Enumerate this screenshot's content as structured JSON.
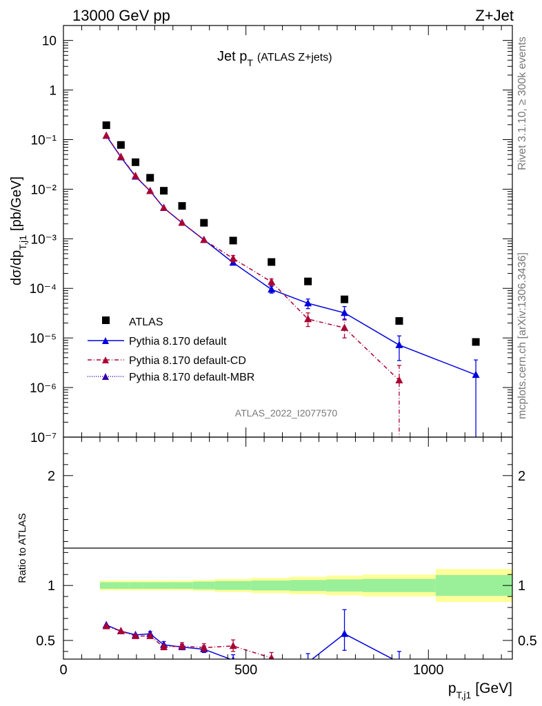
{
  "header": {
    "left": "13000 GeV pp",
    "right": "Z+Jet"
  },
  "side": {
    "rivet": "Rivet 3.1.10, ≥ 300k events",
    "mcplots": "mcplots.cern.ch [arXiv:1306.3436]"
  },
  "chart_data": [
    {
      "type": "scatter",
      "panel": "main",
      "title_main": "Jet p",
      "title_sub": "T",
      "title_extra": "(ATLAS Z+jets)",
      "ylabel": "dσ/dp",
      "ylabel_sub": "T,j1",
      "ylabel_unit": "[pb/GeV]",
      "yscale": "log",
      "ylim": [
        1e-07,
        20
      ],
      "xlim": [
        0,
        1230
      ],
      "y_tick_labels": [
        "10",
        "1",
        "10⁻¹",
        "10⁻²",
        "10⁻³",
        "10⁻⁴",
        "10⁻⁵",
        "10⁻⁶",
        "10⁻⁷"
      ],
      "watermark": "ATLAS_2022_I2077570",
      "legend": {
        "placement": "bottom-left",
        "entries": [
          "ATLAS",
          "Pythia 8.170 default",
          "Pythia 8.170 default-CD",
          "Pythia 8.170 default-MBR"
        ]
      },
      "series": [
        {
          "name": "ATLAS",
          "color": "#000000",
          "marker": "square",
          "x": [
            117.5,
            157.5,
            197.5,
            237.5,
            275,
            325,
            385,
            465,
            570,
            670,
            770,
            920,
            1130
          ],
          "y": [
            0.195,
            0.078,
            0.035,
            0.017,
            0.0093,
            0.0046,
            0.0021,
            0.00092,
            0.00034,
            0.000138,
            6e-05,
            2.2e-05,
            8.3e-06
          ]
        },
        {
          "name": "Pythia 8.170 default",
          "color": "#0000dd",
          "marker": "triangle",
          "line": "solid",
          "x": [
            117.5,
            157.5,
            197.5,
            237.5,
            275,
            325,
            385,
            465,
            570,
            670,
            770,
            920,
            1130
          ],
          "y": [
            0.12,
            0.044,
            0.018,
            0.0092,
            0.0042,
            0.0021,
            0.00095,
            0.00033,
            9.5e-05,
            5e-05,
            3.2e-05,
            7.2e-06,
            1.8e-06
          ],
          "yerr_lo": [
            0,
            0,
            0,
            0,
            0,
            0,
            0,
            0,
            1.5e-05,
            1.1e-05,
            8e-06,
            3.7e-06,
            1.8e-06
          ],
          "yerr_hi": [
            0,
            0,
            0,
            0,
            0,
            0,
            0,
            0,
            1.5e-05,
            1.1e-05,
            1.1e-05,
            3.8e-06,
            1.8e-06
          ]
        },
        {
          "name": "Pythia 8.170 default-CD",
          "color": "#aa0033",
          "marker": "triangle",
          "line": "dashdot",
          "x": [
            117.5,
            157.5,
            197.5,
            237.5,
            275,
            325,
            385,
            465,
            570,
            670,
            770,
            920
          ],
          "y": [
            0.12,
            0.045,
            0.0185,
            0.0092,
            0.0042,
            0.0021,
            0.00095,
            0.0004,
            0.000135,
            2.4e-05,
            1.6e-05,
            1.4e-06
          ],
          "yerr_lo": [
            0,
            0,
            0,
            0,
            0,
            0,
            0,
            6e-05,
            2e-05,
            7e-06,
            6e-06,
            1.4e-06
          ],
          "yerr_hi": [
            0,
            0,
            0,
            0,
            0,
            0,
            0,
            6e-05,
            2e-05,
            8e-06,
            7e-06,
            1.4e-06
          ]
        }
      ]
    },
    {
      "type": "line",
      "panel": "ratio",
      "ylabel": "Ratio to ATLAS",
      "ylim": [
        0.33,
        2.35
      ],
      "xlim": [
        0,
        1230
      ],
      "xlabel": "p",
      "xlabel_sub": "T,j1",
      "xlabel_unit": "[GeV]",
      "x_tick_labels": [
        "0",
        "500",
        "1000"
      ],
      "y_tick_labels": [
        "2",
        "1",
        "0.5"
      ],
      "bands": {
        "bins": [
          [
            100,
            135
          ],
          [
            135,
            180
          ],
          [
            180,
            220
          ],
          [
            220,
            255
          ],
          [
            255,
            295
          ],
          [
            295,
            355
          ],
          [
            355,
            415
          ],
          [
            415,
            515
          ],
          [
            515,
            620
          ],
          [
            620,
            720
          ],
          [
            720,
            820
          ],
          [
            820,
            1020
          ],
          [
            1020,
            1230
          ]
        ],
        "inner": [
          [
            0.97,
            1.03
          ],
          [
            0.97,
            1.03
          ],
          [
            0.97,
            1.03
          ],
          [
            0.97,
            1.03
          ],
          [
            0.97,
            1.03
          ],
          [
            0.97,
            1.03
          ],
          [
            0.965,
            1.035
          ],
          [
            0.96,
            1.04
          ],
          [
            0.955,
            1.045
          ],
          [
            0.95,
            1.05
          ],
          [
            0.945,
            1.055
          ],
          [
            0.94,
            1.06
          ],
          [
            0.905,
            1.095
          ]
        ],
        "outer": [
          [
            0.955,
            1.045
          ],
          [
            0.955,
            1.045
          ],
          [
            0.955,
            1.045
          ],
          [
            0.955,
            1.045
          ],
          [
            0.955,
            1.045
          ],
          [
            0.955,
            1.045
          ],
          [
            0.95,
            1.05
          ],
          [
            0.94,
            1.06
          ],
          [
            0.93,
            1.07
          ],
          [
            0.92,
            1.08
          ],
          [
            0.91,
            1.09
          ],
          [
            0.9,
            1.1
          ],
          [
            0.85,
            1.15
          ]
        ],
        "inner_color": "#99f099",
        "outer_color": "#ffff99"
      },
      "series": [
        {
          "name": "Pythia 8.170 default",
          "color": "#0000dd",
          "line": "solid",
          "x": [
            117.5,
            157.5,
            197.5,
            237.5,
            275,
            325,
            385,
            465,
            570,
            670,
            770,
            920
          ],
          "y": [
            0.64,
            0.585,
            0.55,
            0.56,
            0.46,
            0.44,
            0.42,
            0.32,
            0.25,
            0.3,
            0.56,
            0.3
          ],
          "yerr_lo": [
            0,
            0,
            0,
            0.02,
            0.03,
            0.025,
            0.03,
            0.05,
            0.05,
            0.07,
            0.15,
            0.1
          ],
          "yerr_hi": [
            0,
            0,
            0,
            0.02,
            0.03,
            0.025,
            0.03,
            0.05,
            0.05,
            0.08,
            0.22,
            0.1
          ]
        },
        {
          "name": "Pythia 8.170 default-CD",
          "color": "#aa0033",
          "line": "dashdot",
          "x": [
            117.5,
            157.5,
            197.5,
            237.5,
            275,
            325,
            385,
            465,
            570
          ],
          "y": [
            0.63,
            0.585,
            0.54,
            0.54,
            0.44,
            0.45,
            0.435,
            0.45,
            0.34
          ],
          "yerr_lo": [
            0,
            0,
            0,
            0.02,
            0.025,
            0.03,
            0.035,
            0.05,
            0.05
          ],
          "yerr_hi": [
            0,
            0,
            0,
            0.02,
            0.025,
            0.03,
            0.035,
            0.055,
            0.05
          ]
        }
      ]
    }
  ]
}
